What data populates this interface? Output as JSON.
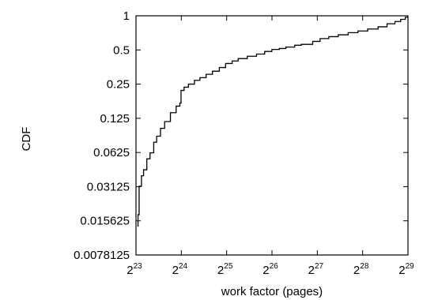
{
  "chart_data": {
    "type": "line",
    "title": "",
    "xlabel": "work factor (pages)",
    "ylabel": "CDF",
    "x_scale": "log2",
    "y_scale": "log2",
    "xlim": [
      8388608,
      536870912
    ],
    "ylim": [
      0.0078125,
      1
    ],
    "x_ticks": [
      {
        "value": 8388608,
        "label_base": "2",
        "label_exp": "23"
      },
      {
        "value": 16777216,
        "label_base": "2",
        "label_exp": "24"
      },
      {
        "value": 33554432,
        "label_base": "2",
        "label_exp": "25"
      },
      {
        "value": 67108864,
        "label_base": "2",
        "label_exp": "26"
      },
      {
        "value": 134217728,
        "label_base": "2",
        "label_exp": "27"
      },
      {
        "value": 268435456,
        "label_base": "2",
        "label_exp": "28"
      },
      {
        "value": 536870912,
        "label_base": "2",
        "label_exp": "29"
      }
    ],
    "y_ticks": [
      {
        "value": 1,
        "label": "1"
      },
      {
        "value": 0.5,
        "label": "0.5"
      },
      {
        "value": 0.25,
        "label": "0.25"
      },
      {
        "value": 0.125,
        "label": "0.125"
      },
      {
        "value": 0.0625,
        "label": "0.0625"
      },
      {
        "value": 0.03125,
        "label": "0.03125"
      },
      {
        "value": 0.015625,
        "label": "0.015625"
      },
      {
        "value": 0.0078125,
        "label": "0.0078125"
      }
    ],
    "grid": false,
    "legend": "none",
    "series": [
      {
        "x": [
          8652000,
          8652000,
          8800000,
          8800000,
          9120000,
          9420000,
          9900000,
          10400000,
          11000000,
          11500000,
          12200000,
          13000000,
          14200000,
          15500000,
          16400000,
          16700000,
          17500000,
          18700000,
          20500000,
          22300000,
          24500000,
          27000000,
          30000000,
          33000000,
          36500000,
          40000000,
          46000000,
          53000000,
          60000000,
          67000000,
          75000000,
          83000000,
          95000000,
          105000000,
          125000000,
          140000000,
          160000000,
          185000000,
          215000000,
          250000000,
          290000000,
          340000000,
          390000000,
          440000000,
          480000000,
          515000000,
          536000000
        ],
        "y": [
          0.0139,
          0.0177,
          0.0197,
          0.0315,
          0.039,
          0.044,
          0.055,
          0.062,
          0.077,
          0.087,
          0.102,
          0.117,
          0.14,
          0.16,
          0.17,
          0.22,
          0.235,
          0.25,
          0.27,
          0.285,
          0.305,
          0.325,
          0.35,
          0.38,
          0.4,
          0.42,
          0.44,
          0.46,
          0.485,
          0.505,
          0.515,
          0.53,
          0.55,
          0.56,
          0.595,
          0.63,
          0.655,
          0.68,
          0.71,
          0.735,
          0.765,
          0.8,
          0.85,
          0.89,
          0.93,
          0.97,
          1.0
        ]
      }
    ]
  }
}
